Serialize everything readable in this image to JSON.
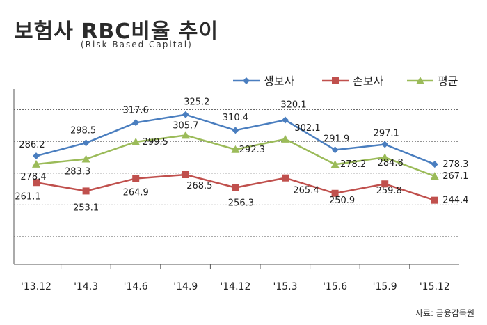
{
  "title": "보험사 RBC비율 추이",
  "subtitle": "(Risk Based Capital)",
  "source": "자료: 금융감독원",
  "colors": {
    "life": "#4a7ebf",
    "nonlife": "#c0504d",
    "average": "#9bbb59",
    "grid": "#555555",
    "text": "#222222"
  },
  "chart_data": {
    "type": "line",
    "title": "보험사 RBC비율 추이",
    "subtitle": "(Risk Based Capital)",
    "categories": [
      "'13.12",
      "'14.3",
      "'14.6",
      "'14.9",
      "'14.12",
      "'15.3",
      "'15.6",
      "'15.9",
      "'15.12"
    ],
    "series": [
      {
        "name": "생보사",
        "marker": "diamond",
        "color": "#4a7ebf",
        "values": [
          286.2,
          298.5,
          317.6,
          325.2,
          310.4,
          320.1,
          291.9,
          297.1,
          278.3
        ]
      },
      {
        "name": "손보사",
        "marker": "square",
        "color": "#c0504d",
        "values": [
          261.1,
          253.1,
          264.9,
          268.5,
          256.3,
          265.4,
          250.9,
          259.8,
          244.4
        ]
      },
      {
        "name": "평균",
        "marker": "triangle",
        "color": "#9bbb59",
        "values": [
          278.4,
          283.3,
          299.5,
          305.7,
          292.3,
          302.1,
          278.2,
          284.8,
          267.1
        ]
      }
    ],
    "ylim": [
      205,
      355
    ],
    "grid": true,
    "y_tick_labels_shown": false,
    "legend_position": "top-right",
    "xlabel": "",
    "ylabel": ""
  }
}
